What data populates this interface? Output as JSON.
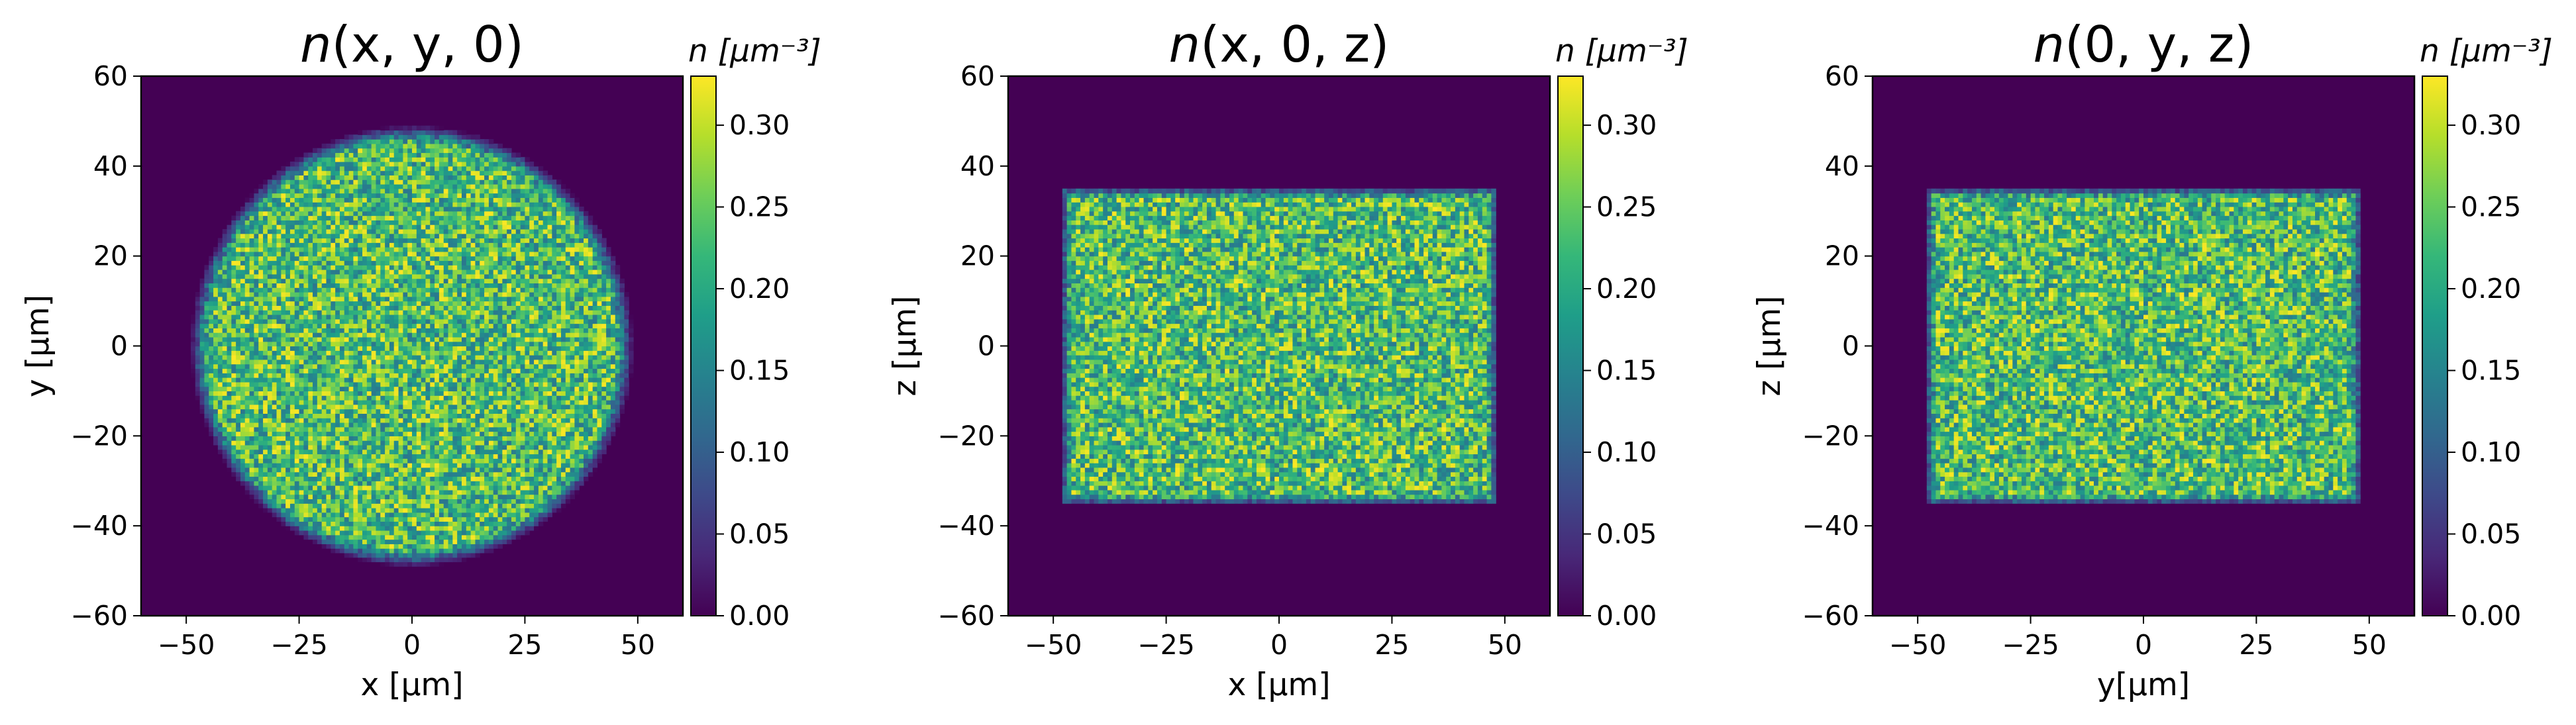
{
  "chart_data": [
    {
      "type": "heatmap",
      "title_italic": "n",
      "title_rest": "(x, y, 0)",
      "xlabel": "x [µm]",
      "ylabel": "y [µm]",
      "xlim": [
        -60,
        60
      ],
      "ylim": [
        -60,
        60
      ],
      "xticks": [
        -50,
        -25,
        0,
        25,
        50
      ],
      "yticks": [
        -60,
        -40,
        -20,
        0,
        20,
        40,
        60
      ],
      "shape": "circle",
      "shape_extent": {
        "center": [
          0,
          0
        ],
        "radius": 47
      },
      "colorbar": {
        "label_italic": "n",
        "label_rest": "[µm⁻³]",
        "range": [
          0,
          0.33
        ],
        "ticks": [
          "0.00",
          "0.05",
          "0.10",
          "0.15",
          "0.20",
          "0.25",
          "0.30"
        ]
      }
    },
    {
      "type": "heatmap",
      "title_italic": "n",
      "title_rest": "(x, 0, z)",
      "xlabel": "x [µm]",
      "ylabel": "z [µm]",
      "xlim": [
        -60,
        60
      ],
      "ylim": [
        -60,
        60
      ],
      "xticks": [
        -50,
        -25,
        0,
        25,
        50
      ],
      "yticks": [
        -60,
        -40,
        -20,
        0,
        20,
        40,
        60
      ],
      "shape": "rectangle",
      "shape_extent": {
        "x": [
          -47,
          47
        ],
        "y": [
          -34,
          34
        ]
      },
      "colorbar": {
        "label_italic": "n",
        "label_rest": "[µm⁻³]",
        "range": [
          0,
          0.33
        ],
        "ticks": [
          "0.00",
          "0.05",
          "0.10",
          "0.15",
          "0.20",
          "0.25",
          "0.30"
        ]
      }
    },
    {
      "type": "heatmap",
      "title_italic": "n",
      "title_rest": "(0, y, z)",
      "xlabel": "y[µm]",
      "ylabel": "z [µm]",
      "xlim": [
        -60,
        60
      ],
      "ylim": [
        -60,
        60
      ],
      "xticks": [
        -50,
        -25,
        0,
        25,
        50
      ],
      "yticks": [
        -60,
        -40,
        -20,
        0,
        20,
        40,
        60
      ],
      "shape": "rectangle",
      "shape_extent": {
        "x": [
          -47,
          47
        ],
        "y": [
          -34,
          34
        ]
      },
      "colorbar": {
        "label_italic": "n",
        "label_rest": "[µm⁻³]",
        "range": [
          0,
          0.33
        ],
        "ticks": [
          "0.00",
          "0.05",
          "0.10",
          "0.15",
          "0.20",
          "0.25",
          "0.30"
        ]
      }
    }
  ],
  "colors": {
    "background_low": "#440154",
    "viridis": [
      "#440154",
      "#482878",
      "#3e4989",
      "#31688e",
      "#26828e",
      "#1f9e89",
      "#35b779",
      "#6ece58",
      "#b5de2b",
      "#fde725"
    ]
  }
}
